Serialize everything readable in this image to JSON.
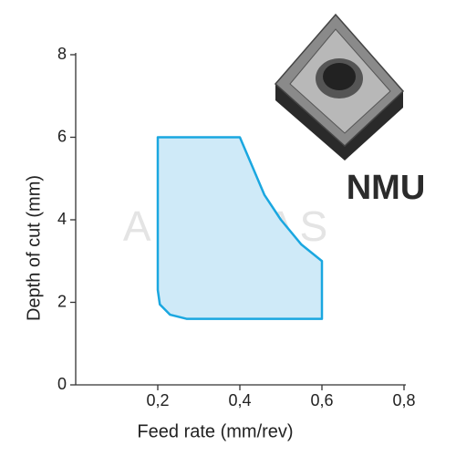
{
  "chart_data": {
    "type": "area",
    "x_label": "Feed rate (mm/rev)",
    "y_label": "Depth of cut (mm)",
    "annotations": [
      "NMU",
      "ANODAS"
    ],
    "x": [
      0.2,
      0.4,
      0.43,
      0.46,
      0.5,
      0.55,
      0.6,
      0.6,
      0.27,
      0.23,
      0.205,
      0.2
    ],
    "values": [
      6,
      6,
      5.3,
      4.6,
      4,
      3.4,
      3,
      1.6,
      1.6,
      1.7,
      1.95,
      2.3
    ],
    "color": "#1aa7e0",
    "fill_color": "#cfeaf8",
    "xlim": [
      0,
      0.8
    ],
    "xticks": [
      {
        "value": 0.2,
        "label": "0,2"
      },
      {
        "value": 0.4,
        "label": "0,4"
      },
      {
        "value": 0.6,
        "label": "0,6"
      },
      {
        "value": 0.8,
        "label": "0,8"
      }
    ],
    "ylim": [
      0,
      8
    ],
    "yticks": [
      0,
      2,
      4,
      6,
      8
    ]
  }
}
